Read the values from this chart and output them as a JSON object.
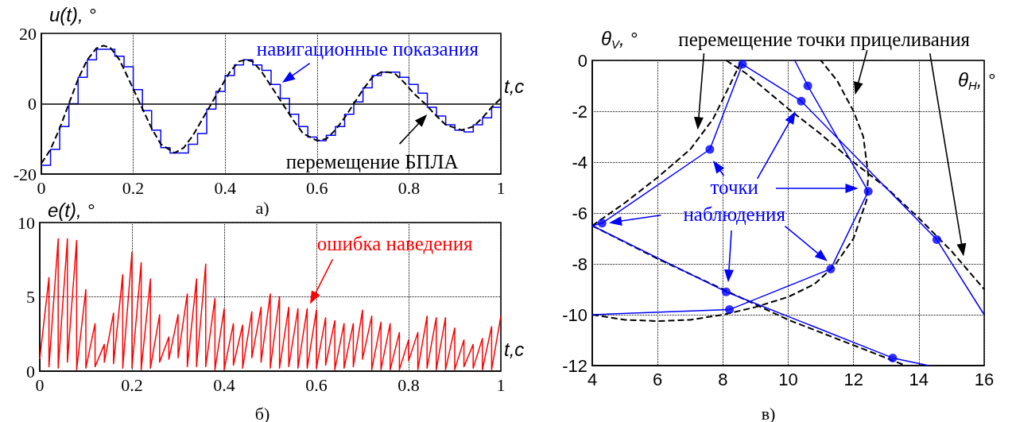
{
  "chart_data": [
    {
      "type": "line",
      "title": "а)",
      "xlabel": "t,c",
      "ylabel": "u(t), °",
      "xlim": [
        0,
        1
      ],
      "xticks": [
        0,
        0.2,
        0.4,
        0.6,
        0.8,
        1
      ],
      "ylim": [
        -20,
        20
      ],
      "yticks": [
        -20,
        0,
        20
      ],
      "grid": "x",
      "ref_lines": [
        {
          "axis": "y",
          "value": 0
        }
      ],
      "series": [
        {
          "name": "навигационные показания",
          "type": "step",
          "color": "#0000ff",
          "line_style": "solid",
          "x": [
            0,
            0.02,
            0.04,
            0.06,
            0.08,
            0.1,
            0.12,
            0.14,
            0.16,
            0.18,
            0.2,
            0.22,
            0.24,
            0.26,
            0.28,
            0.3,
            0.32,
            0.34,
            0.36,
            0.38,
            0.4,
            0.42,
            0.44,
            0.46,
            0.48,
            0.5,
            0.52,
            0.54,
            0.56,
            0.58,
            0.6,
            0.62,
            0.64,
            0.66,
            0.68,
            0.7,
            0.72,
            0.74,
            0.76,
            0.78,
            0.8,
            0.82,
            0.84,
            0.86,
            0.88,
            0.9,
            0.92,
            0.94,
            0.96,
            0.98,
            1
          ],
          "values": [
            -17.5,
            -13,
            -6.5,
            0,
            7.5,
            12.5,
            15.5,
            15.5,
            13.5,
            10.5,
            4,
            -2,
            -7.5,
            -12.5,
            -14,
            -14,
            -11.5,
            -8.5,
            -1.5,
            3.5,
            8,
            11,
            12.5,
            11,
            9.5,
            5.5,
            1.5,
            -3,
            -6.5,
            -9.5,
            -10.5,
            -9,
            -6.5,
            -3,
            0.5,
            4.5,
            8,
            9,
            9,
            7.5,
            5.5,
            3,
            -1,
            -3.5,
            -6,
            -7.5,
            -8,
            -6,
            -4,
            -1,
            -1
          ]
        },
        {
          "name": "перемещение БПЛА",
          "type": "line",
          "color": "#000000",
          "line_style": "dashed",
          "x": [
            0,
            0.02,
            0.04,
            0.06,
            0.08,
            0.1,
            0.12,
            0.135,
            0.15,
            0.17,
            0.19,
            0.215,
            0.24,
            0.26,
            0.29,
            0.31,
            0.33,
            0.35,
            0.37,
            0.39,
            0.41,
            0.43,
            0.445,
            0.46,
            0.48,
            0.5,
            0.525,
            0.55,
            0.57,
            0.6,
            0.62,
            0.64,
            0.66,
            0.68,
            0.7,
            0.72,
            0.74,
            0.755,
            0.77,
            0.79,
            0.81,
            0.835,
            0.86,
            0.88,
            0.915,
            0.94,
            0.96,
            0.98,
            1
          ],
          "values": [
            -17,
            -13,
            -7,
            0,
            7,
            12.5,
            15.8,
            16.5,
            16,
            12.5,
            7,
            0,
            -7,
            -11.5,
            -14,
            -12.5,
            -9,
            -4.5,
            0,
            4.5,
            9,
            12,
            12.5,
            12,
            9,
            5,
            0,
            -5,
            -8.5,
            -10.5,
            -10,
            -7.5,
            -4,
            0,
            4,
            7.5,
            9,
            9,
            8.5,
            6,
            3,
            0,
            -3.5,
            -6,
            -7.5,
            -6.5,
            -4,
            -1,
            1.5
          ]
        }
      ]
    },
    {
      "type": "line",
      "title": "б)",
      "xlabel": "t,c",
      "ylabel": "e(t), °",
      "xlim": [
        0,
        1
      ],
      "xticks": [
        0,
        0.2,
        0.4,
        0.6,
        0.8,
        1
      ],
      "ylim": [
        0,
        10
      ],
      "yticks": [
        0,
        5,
        10
      ],
      "grid": true,
      "series": [
        {
          "name": "ошибка наведения",
          "color": "#ff0000",
          "x": [
            0,
            0.02,
            0.02,
            0.04,
            0.04,
            0.06,
            0.06,
            0.08,
            0.08,
            0.1,
            0.1,
            0.12,
            0.12,
            0.14,
            0.14,
            0.16,
            0.16,
            0.18,
            0.18,
            0.2,
            0.2,
            0.22,
            0.22,
            0.24,
            0.24,
            0.26,
            0.26,
            0.28,
            0.28,
            0.3,
            0.3,
            0.32,
            0.32,
            0.34,
            0.34,
            0.36,
            0.36,
            0.38,
            0.38,
            0.4,
            0.4,
            0.42,
            0.42,
            0.44,
            0.44,
            0.46,
            0.46,
            0.48,
            0.48,
            0.5,
            0.5,
            0.52,
            0.52,
            0.54,
            0.54,
            0.56,
            0.56,
            0.58,
            0.58,
            0.6,
            0.6,
            0.62,
            0.62,
            0.64,
            0.64,
            0.66,
            0.66,
            0.68,
            0.68,
            0.7,
            0.7,
            0.72,
            0.72,
            0.74,
            0.74,
            0.76,
            0.76,
            0.78,
            0.78,
            0.8,
            0.8,
            0.82,
            0.82,
            0.84,
            0.84,
            0.86,
            0.86,
            0.88,
            0.88,
            0.9,
            0.9,
            0.92,
            0.92,
            0.94,
            0.94,
            0.96,
            0.96,
            0.98,
            0.98,
            1
          ],
          "values": [
            0.8,
            6.3,
            0.3,
            8.9,
            0.2,
            8.9,
            0.6,
            8.8,
            0.1,
            5.5,
            0.2,
            3.2,
            0.3,
            1.8,
            0.6,
            3.9,
            0.5,
            6.5,
            0.2,
            8,
            0.2,
            7.3,
            0.1,
            6.2,
            0.2,
            3.8,
            0.6,
            2.3,
            0.8,
            3.8,
            0.9,
            5.2,
            0.3,
            6.2,
            0.3,
            7.2,
            0.3,
            4.9,
            0.1,
            4.2,
            0.1,
            3.2,
            0.4,
            3.1,
            0.2,
            4,
            0.9,
            4.3,
            0.6,
            5.2,
            0.2,
            5,
            0.2,
            4.3,
            0.3,
            4.2,
            0.2,
            4.2,
            0.2,
            4.1,
            0.2,
            3.6,
            0.4,
            3.4,
            0.1,
            3.2,
            0.2,
            3.2,
            0.3,
            4.1,
            0.8,
            3.7,
            0.1,
            3.3,
            0.1,
            3.2,
            0.1,
            2.6,
            0.1,
            2.1,
            0.7,
            2.6,
            0.1,
            3.7,
            0.2,
            3.6,
            0.1,
            3.6,
            0.1,
            2.9,
            0.1,
            2.1,
            0.3,
            1.8,
            0.2,
            2.2,
            0.1,
            3,
            0.1,
            3.7
          ]
        }
      ]
    },
    {
      "type": "line",
      "title": "в)",
      "xlabel": "θ$_{H}$, °",
      "ylabel": "θ$_{V}$, °",
      "xlim": [
        4,
        16
      ],
      "xticks": [
        4,
        6,
        8,
        10,
        12,
        14,
        16
      ],
      "ylim": [
        -12,
        0
      ],
      "yticks": [
        -12,
        -10,
        -8,
        -6,
        -4,
        -2,
        0
      ],
      "grid": true,
      "series": [
        {
          "name": "перемещение точки прицеливания",
          "color": "#000000",
          "line_style": "dashed",
          "x": [
            4,
            5,
            6,
            7,
            7.7,
            8.2,
            8.5,
            8.6,
            null,
            8.1,
            8.7,
            10,
            11,
            12,
            13,
            14,
            15,
            16,
            null,
            4,
            6,
            8,
            10,
            12,
            13.6,
            null,
            4,
            5,
            6,
            7,
            8,
            9,
            10,
            10.8,
            11.4,
            12,
            12.4,
            12.45,
            12.3,
            12,
            11.5,
            11
          ],
          "values": [
            -6.5,
            -5.6,
            -4.6,
            -3.5,
            -2.3,
            -1,
            -0.2,
            0,
            null,
            0,
            -0.5,
            -1.9,
            -2.9,
            -4,
            -5,
            -6.2,
            -7.5,
            -9,
            null,
            -6.5,
            -7.8,
            -9,
            -10.2,
            -11.2,
            -12,
            null,
            -10,
            -10.2,
            -10.25,
            -10.2,
            -10,
            -9.7,
            -9.3,
            -8.8,
            -8.1,
            -7,
            -5.5,
            -4.5,
            -3,
            -2,
            -0.8,
            0
          ]
        },
        {
          "color": "#0000ff",
          "x": [
            4,
            8.2,
            11.3,
            12.45,
            10.6,
            10.2,
            null,
            16,
            14.55,
            10.4,
            8.6,
            7.6,
            4.3,
            4,
            8.1,
            13.2,
            14.3
          ],
          "values": [
            -10,
            -9.8,
            -8.2,
            -5.15,
            -1,
            0,
            null,
            -10,
            -7.05,
            -1.6,
            -0.15,
            -3.5,
            -6.4,
            -6.5,
            -9.1,
            -11.7,
            -12
          ]
        },
        {
          "name": "точки наблюдения",
          "type": "scatter",
          "marker": "circle",
          "color": "#0000ff",
          "x": [
            8.6,
            10.6,
            10.4,
            7.6,
            12.45,
            4.3,
            14.55,
            11.3,
            8.1,
            8.2,
            13.2
          ],
          "values": [
            -0.15,
            -1,
            -1.6,
            -3.5,
            -5.15,
            -6.4,
            -7.05,
            -8.2,
            -9.1,
            -9.8,
            -11.7
          ]
        }
      ]
    }
  ]
}
